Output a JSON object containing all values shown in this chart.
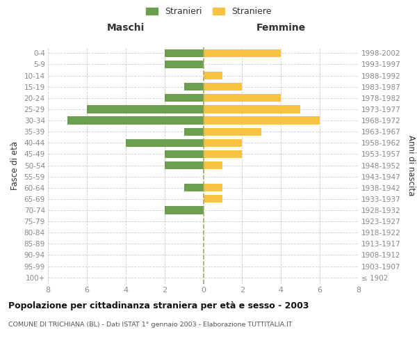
{
  "age_groups": [
    "100+",
    "95-99",
    "90-94",
    "85-89",
    "80-84",
    "75-79",
    "70-74",
    "65-69",
    "60-64",
    "55-59",
    "50-54",
    "45-49",
    "40-44",
    "35-39",
    "30-34",
    "25-29",
    "20-24",
    "15-19",
    "10-14",
    "5-9",
    "0-4"
  ],
  "birth_years": [
    "≤ 1902",
    "1903-1907",
    "1908-1912",
    "1913-1917",
    "1918-1922",
    "1923-1927",
    "1928-1932",
    "1933-1937",
    "1938-1942",
    "1943-1947",
    "1948-1952",
    "1953-1957",
    "1958-1962",
    "1963-1967",
    "1968-1972",
    "1973-1977",
    "1978-1982",
    "1983-1987",
    "1988-1992",
    "1993-1997",
    "1998-2002"
  ],
  "males": [
    0,
    0,
    0,
    0,
    0,
    0,
    2,
    0,
    1,
    0,
    2,
    2,
    4,
    1,
    7,
    6,
    2,
    1,
    0,
    2,
    2
  ],
  "females": [
    0,
    0,
    0,
    0,
    0,
    0,
    0,
    1,
    1,
    0,
    1,
    2,
    2,
    3,
    6,
    5,
    4,
    2,
    1,
    0,
    4
  ],
  "male_color": "#6b9e4e",
  "female_color": "#f5c242",
  "grid_color": "#cccccc",
  "center_line_color": "#aaa866",
  "title": "Popolazione per cittadinanza straniera per età e sesso - 2003",
  "subtitle": "COMUNE DI TRICHIANA (BL) - Dati ISTAT 1° gennaio 2003 - Elaborazione TUTTITALIA.IT",
  "ylabel_left": "Fasce di età",
  "ylabel_right": "Anni di nascita",
  "header_left": "Maschi",
  "header_right": "Femmine",
  "legend_male": "Stranieri",
  "legend_female": "Straniere",
  "xlim": 8,
  "tick_color": "#888888",
  "label_color": "#333333",
  "title_color": "#111111",
  "subtitle_color": "#555555"
}
